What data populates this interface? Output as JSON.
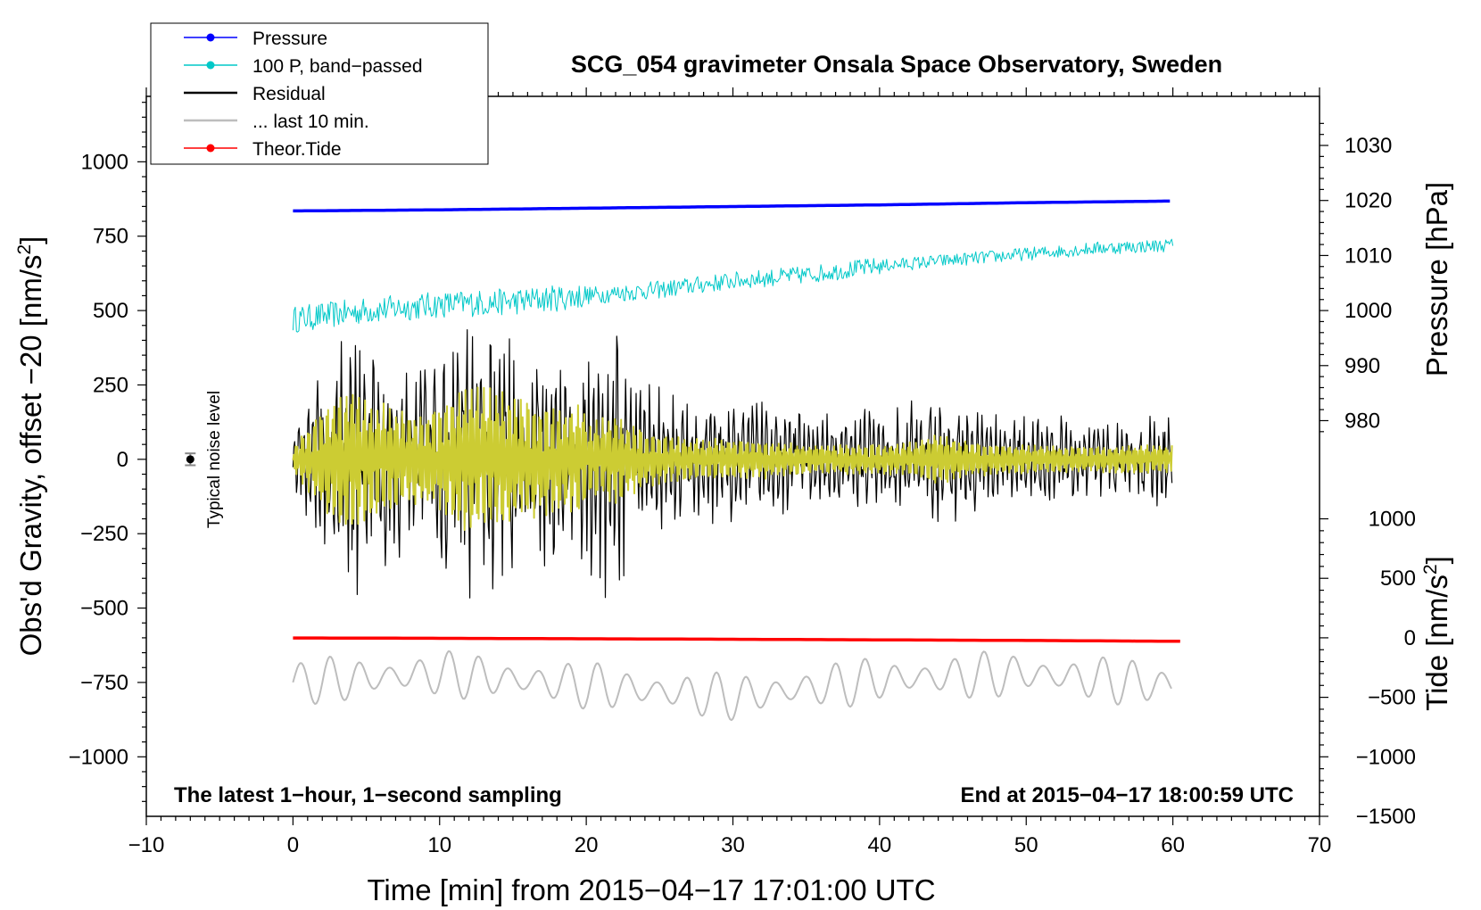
{
  "chart_data": {
    "type": "line",
    "title": "SCG_054 gravimeter Onsala Space Observatory, Sweden",
    "xlabel": "Time [min] from 2015−04−17 17:01:00 UTC",
    "ylabel_left": "Obs'd Gravity, offset −20 [nm/s²]",
    "ylabel_right_top": "Pressure [hPa]",
    "ylabel_right_bottom": "Tide [nm/s²]",
    "xlim": [
      -10,
      70
    ],
    "ylim_left": [
      -1200,
      1220
    ],
    "x_ticks": [
      -10,
      0,
      10,
      20,
      30,
      40,
      50,
      60,
      70
    ],
    "x_tick_labels": [
      "−10",
      "0",
      "10",
      "20",
      "30",
      "40",
      "50",
      "60",
      "70"
    ],
    "y_ticks_left": [
      1000,
      750,
      500,
      250,
      0,
      -250,
      -500,
      -750,
      -1000
    ],
    "y_tick_labels_left": [
      "1000",
      "750",
      "500",
      "250",
      "0",
      "−250",
      "−500",
      "−750",
      "−1000"
    ],
    "pressure_axis": {
      "ticks": [
        1030,
        1020,
        1010,
        1000,
        990,
        980
      ],
      "tick_labels": [
        "1030",
        "1020",
        "1010",
        "1000",
        "990",
        "980"
      ],
      "gravity_at_1000": 500,
      "nm_per_hPa": 18.5
    },
    "tide_axis": {
      "ticks": [
        1000,
        500,
        0,
        -500,
        -1000,
        -1500
      ],
      "tick_labels": [
        "1000",
        "500",
        "0",
        "−500",
        "−1000",
        "−1500"
      ],
      "gravity_at_0": -600,
      "gravity_per_nm": 0.4
    },
    "annotations": {
      "bottom_left": "The latest 1−hour, 1−second sampling",
      "bottom_right": "End at 2015−04−17 18:00:59 UTC",
      "noise": "Typical noise level"
    },
    "noise_level": {
      "x": -7,
      "y": 0,
      "err": 20
    },
    "legend": {
      "position": "top-left",
      "entries": [
        {
          "label": "Pressure",
          "color": "#0000ff",
          "marker": true
        },
        {
          "label": "100 P, band−passed",
          "color": "#00c8c8",
          "marker": true
        },
        {
          "label": "Residual",
          "color": "#000000",
          "marker": false
        },
        {
          "label": "... last 10 min.",
          "color": "#bdbdbd",
          "marker": false
        },
        {
          "label": "Theor.Tide",
          "color": "#ff0000",
          "marker": true
        }
      ]
    },
    "series": [
      {
        "name": "Pressure",
        "color": "#0000ff",
        "axis": "pressure_hPa",
        "x": [
          0,
          10,
          20,
          30,
          40,
          50,
          60
        ],
        "values": [
          1018.1,
          1018.3,
          1018.6,
          1018.9,
          1019.2,
          1019.6,
          1019.9
        ]
      },
      {
        "name": "100 P, band−passed",
        "color": "#00c8c8",
        "axis": "gravity_nm_s2",
        "x": [
          0,
          5,
          10,
          15,
          20,
          25,
          30,
          35,
          40,
          45,
          50,
          55,
          60
        ],
        "values": [
          470,
          500,
          520,
          530,
          550,
          570,
          600,
          620,
          650,
          670,
          690,
          710,
          720
        ]
      },
      {
        "name": "Residual",
        "color": "#000000",
        "axis": "gravity_nm_s2",
        "x": [
          0,
          2,
          4,
          6,
          8,
          10,
          12,
          14,
          16,
          18,
          20,
          22,
          24,
          26,
          28,
          30,
          32,
          34,
          36,
          38,
          40,
          42,
          44,
          46,
          48,
          50,
          52,
          54,
          56,
          58,
          60
        ],
        "envelope": [
          80,
          350,
          520,
          380,
          300,
          350,
          500,
          460,
          400,
          350,
          380,
          520,
          300,
          250,
          220,
          230,
          220,
          180,
          160,
          170,
          170,
          190,
          280,
          200,
          170,
          160,
          150,
          140,
          150,
          160,
          160
        ]
      },
      {
        "name": "... last 10 min.",
        "color": "#bdbdbd",
        "axis": "gravity_nm_s2",
        "x": [
          0,
          10,
          20,
          30,
          40,
          50,
          60
        ],
        "values": [
          -750,
          -720,
          -760,
          -800,
          -740,
          -720,
          -760
        ]
      },
      {
        "name": "Theor.Tide",
        "color": "#ff0000",
        "axis": "tide_nm_s2",
        "x": [
          0,
          10,
          20,
          30,
          40,
          50,
          60
        ],
        "values": [
          -1,
          -4,
          -8,
          -12,
          -17,
          -22,
          -29
        ]
      }
    ],
    "bandpassed_overlay_color": "#cccc33"
  }
}
